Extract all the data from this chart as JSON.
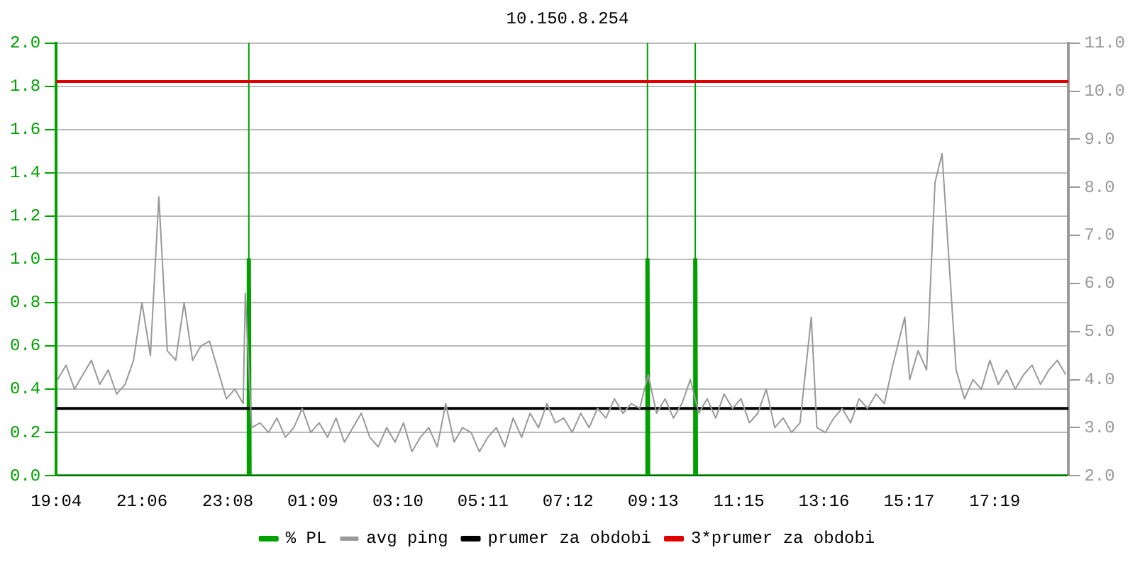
{
  "chart_data": {
    "type": "line",
    "title": "10.150.8.254",
    "xlim": [
      "--01-01T19:04",
      "--01-02T19:04"
    ],
    "xticks": [
      {
        "value": "--01-01T19:04",
        "label": "19:04"
      },
      {
        "value": "--01-01T21:06",
        "label": "21:06"
      },
      {
        "value": "--01-01T23:08",
        "label": "23:08"
      },
      {
        "value": "--01-02T01:09",
        "label": "01:09"
      },
      {
        "value": "--01-02T03:10",
        "label": "03:10"
      },
      {
        "value": "--01-02T05:11",
        "label": "05:11"
      },
      {
        "value": "--01-02T07:12",
        "label": "07:12"
      },
      {
        "value": "--01-02T09:13",
        "label": "09:13"
      },
      {
        "value": "--01-02T11:15",
        "label": "11:15"
      },
      {
        "value": "--01-02T13:16",
        "label": "13:16"
      },
      {
        "value": "--01-02T15:17",
        "label": "15:17"
      },
      {
        "value": "--01-02T17:19",
        "label": "17:19"
      }
    ],
    "ylim": [
      0,
      2
    ],
    "yticks": [
      {
        "value": 0,
        "label": "0.0"
      },
      {
        "value": 0.2,
        "label": "0.2"
      },
      {
        "value": 0.4,
        "label": "0.4"
      },
      {
        "value": 0.6,
        "label": "0.6"
      },
      {
        "value": 0.8,
        "label": "0.8"
      },
      {
        "value": 1,
        "label": "1.0"
      },
      {
        "value": 1.2,
        "label": "1.2"
      },
      {
        "value": 1.4,
        "label": "1.4"
      },
      {
        "value": 1.6,
        "label": "1.6"
      },
      {
        "value": 1.8,
        "label": "1.8"
      },
      {
        "value": 2,
        "label": "2.0"
      }
    ],
    "y2lim": [
      2,
      11
    ],
    "y2ticks": [
      {
        "value": 2,
        "label": "2.0"
      },
      {
        "value": 3,
        "label": "3.0"
      },
      {
        "value": 4,
        "label": "4.0"
      },
      {
        "value": 5,
        "label": "5.0"
      },
      {
        "value": 6,
        "label": "6.0"
      },
      {
        "value": 7,
        "label": "7.0"
      },
      {
        "value": 8,
        "label": "8.0"
      },
      {
        "value": 9,
        "label": "9.0"
      },
      {
        "value": 10,
        "label": "10.0"
      },
      {
        "value": 11,
        "label": "11.0"
      }
    ],
    "grid": "y",
    "legend": "bottom",
    "marker": "none",
    "series": [
      {
        "name": "% PL",
        "color": "#00a000",
        "x": [
          "--01-01T19:04",
          "--01-01T23:36",
          "--01-01T23:37",
          "--01-01T23:39",
          "--01-01T23:40",
          "--01-02T09:03",
          "--01-02T09:04",
          "--01-02T09:06",
          "--01-02T09:07",
          "--01-02T10:11",
          "--01-02T10:12",
          "--01-02T10:14",
          "--01-02T10:15",
          "--01-02T19:04"
        ],
        "values": [
          0,
          0,
          1,
          1,
          0,
          0,
          1,
          1,
          0,
          0,
          1,
          1,
          0,
          0
        ]
      },
      {
        "name": "avg ping",
        "color": "#999999",
        "axis": "y2",
        "x": [
          "--01-01T19:06",
          "--01-01T19:18",
          "--01-01T19:30",
          "--01-01T19:42",
          "--01-01T19:54",
          "--01-01T20:06",
          "--01-01T20:18",
          "--01-01T20:30",
          "--01-01T20:42",
          "--01-01T20:54",
          "--01-01T21:06",
          "--01-01T21:18",
          "--01-01T21:30",
          "--01-01T21:42",
          "--01-01T21:54",
          "--01-01T22:06",
          "--01-01T22:18",
          "--01-01T22:30",
          "--01-01T22:42",
          "--01-01T22:54",
          "--01-01T23:06",
          "--01-01T23:18",
          "--01-01T23:30",
          "--01-01T23:33",
          "--01-01T23:42",
          "--01-01T23:54",
          "--01-02T00:06",
          "--01-02T00:18",
          "--01-02T00:30",
          "--01-02T00:42",
          "--01-02T00:54",
          "--01-02T01:06",
          "--01-02T01:18",
          "--01-02T01:30",
          "--01-02T01:42",
          "--01-02T01:54",
          "--01-02T02:06",
          "--01-02T02:18",
          "--01-02T02:30",
          "--01-02T02:42",
          "--01-02T02:54",
          "--01-02T03:06",
          "--01-02T03:18",
          "--01-02T03:30",
          "--01-02T03:42",
          "--01-02T03:54",
          "--01-02T04:06",
          "--01-02T04:18",
          "--01-02T04:30",
          "--01-02T04:42",
          "--01-02T04:54",
          "--01-02T05:06",
          "--01-02T05:18",
          "--01-02T05:30",
          "--01-02T05:42",
          "--01-02T05:54",
          "--01-02T06:06",
          "--01-02T06:18",
          "--01-02T06:30",
          "--01-02T06:42",
          "--01-02T06:54",
          "--01-02T07:06",
          "--01-02T07:18",
          "--01-02T07:30",
          "--01-02T07:42",
          "--01-02T07:54",
          "--01-02T08:06",
          "--01-02T08:18",
          "--01-02T08:30",
          "--01-02T08:42",
          "--01-02T08:54",
          "--01-02T09:06",
          "--01-02T09:18",
          "--01-02T09:30",
          "--01-02T09:42",
          "--01-02T09:54",
          "--01-02T10:06",
          "--01-02T10:18",
          "--01-02T10:30",
          "--01-02T10:42",
          "--01-02T10:54",
          "--01-02T11:06",
          "--01-02T11:18",
          "--01-02T11:30",
          "--01-02T11:42",
          "--01-02T11:54",
          "--01-02T12:06",
          "--01-02T12:18",
          "--01-02T12:30",
          "--01-02T12:42",
          "--01-02T12:58",
          "--01-02T13:06",
          "--01-02T13:18",
          "--01-02T13:30",
          "--01-02T13:42",
          "--01-02T13:54",
          "--01-02T14:06",
          "--01-02T14:18",
          "--01-02T14:30",
          "--01-02T14:42",
          "--01-02T14:54",
          "--01-02T15:11",
          "--01-02T15:18",
          "--01-02T15:30",
          "--01-02T15:42",
          "--01-02T15:54",
          "--01-02T16:04",
          "--01-02T16:12",
          "--01-02T16:24",
          "--01-02T16:36",
          "--01-02T16:48",
          "--01-02T17:00",
          "--01-02T17:12",
          "--01-02T17:24",
          "--01-02T17:36",
          "--01-02T17:48",
          "--01-02T18:00",
          "--01-02T18:12",
          "--01-02T18:24",
          "--01-02T18:36",
          "--01-02T18:48",
          "--01-02T19:00"
        ],
        "values": [
          4.0,
          4.3,
          3.8,
          4.1,
          4.4,
          3.9,
          4.2,
          3.7,
          3.9,
          4.4,
          5.6,
          4.5,
          7.8,
          4.6,
          4.4,
          5.6,
          4.4,
          4.7,
          4.8,
          4.2,
          3.6,
          3.8,
          3.5,
          5.8,
          3.0,
          3.1,
          2.9,
          3.2,
          2.8,
          3.0,
          3.4,
          2.9,
          3.1,
          2.8,
          3.2,
          2.7,
          3.0,
          3.3,
          2.8,
          2.6,
          3.0,
          2.7,
          3.1,
          2.5,
          2.8,
          3.0,
          2.6,
          3.5,
          2.7,
          3.0,
          2.9,
          2.5,
          2.8,
          3.0,
          2.6,
          3.2,
          2.8,
          3.3,
          3.0,
          3.5,
          3.1,
          3.2,
          2.9,
          3.3,
          3.0,
          3.4,
          3.2,
          3.6,
          3.3,
          3.5,
          3.4,
          4.1,
          3.3,
          3.6,
          3.2,
          3.5,
          4.0,
          3.3,
          3.6,
          3.2,
          3.7,
          3.4,
          3.6,
          3.1,
          3.3,
          3.8,
          3.0,
          3.2,
          2.9,
          3.1,
          5.3,
          3.0,
          2.9,
          3.2,
          3.4,
          3.1,
          3.6,
          3.4,
          3.7,
          3.5,
          4.3,
          5.3,
          4.0,
          4.6,
          4.2,
          8.1,
          8.7,
          6.9,
          4.2,
          3.6,
          4.0,
          3.8,
          4.4,
          3.9,
          4.2,
          3.8,
          4.1,
          4.3,
          3.9,
          4.2,
          4.4,
          4.1
        ]
      },
      {
        "name": "prumer za obdobi",
        "color": "#000000",
        "axis": "y2",
        "x": [
          "--01-01T19:04",
          "--01-02T19:04"
        ],
        "values": [
          3.4,
          3.4
        ]
      },
      {
        "name": "3*prumer za obdobi",
        "color": "#e00000",
        "axis": "y2",
        "x": [
          "--01-01T19:04",
          "--01-02T19:04"
        ],
        "values": [
          10.2,
          10.2
        ]
      }
    ],
    "ref_lines": [
      {
        "axis": "x",
        "value": "--01-01T23:38",
        "color": "#00a000"
      },
      {
        "axis": "x",
        "value": "--01-02T09:05",
        "color": "#00a000"
      },
      {
        "axis": "x",
        "value": "--01-02T10:13",
        "color": "#00a000"
      }
    ]
  }
}
